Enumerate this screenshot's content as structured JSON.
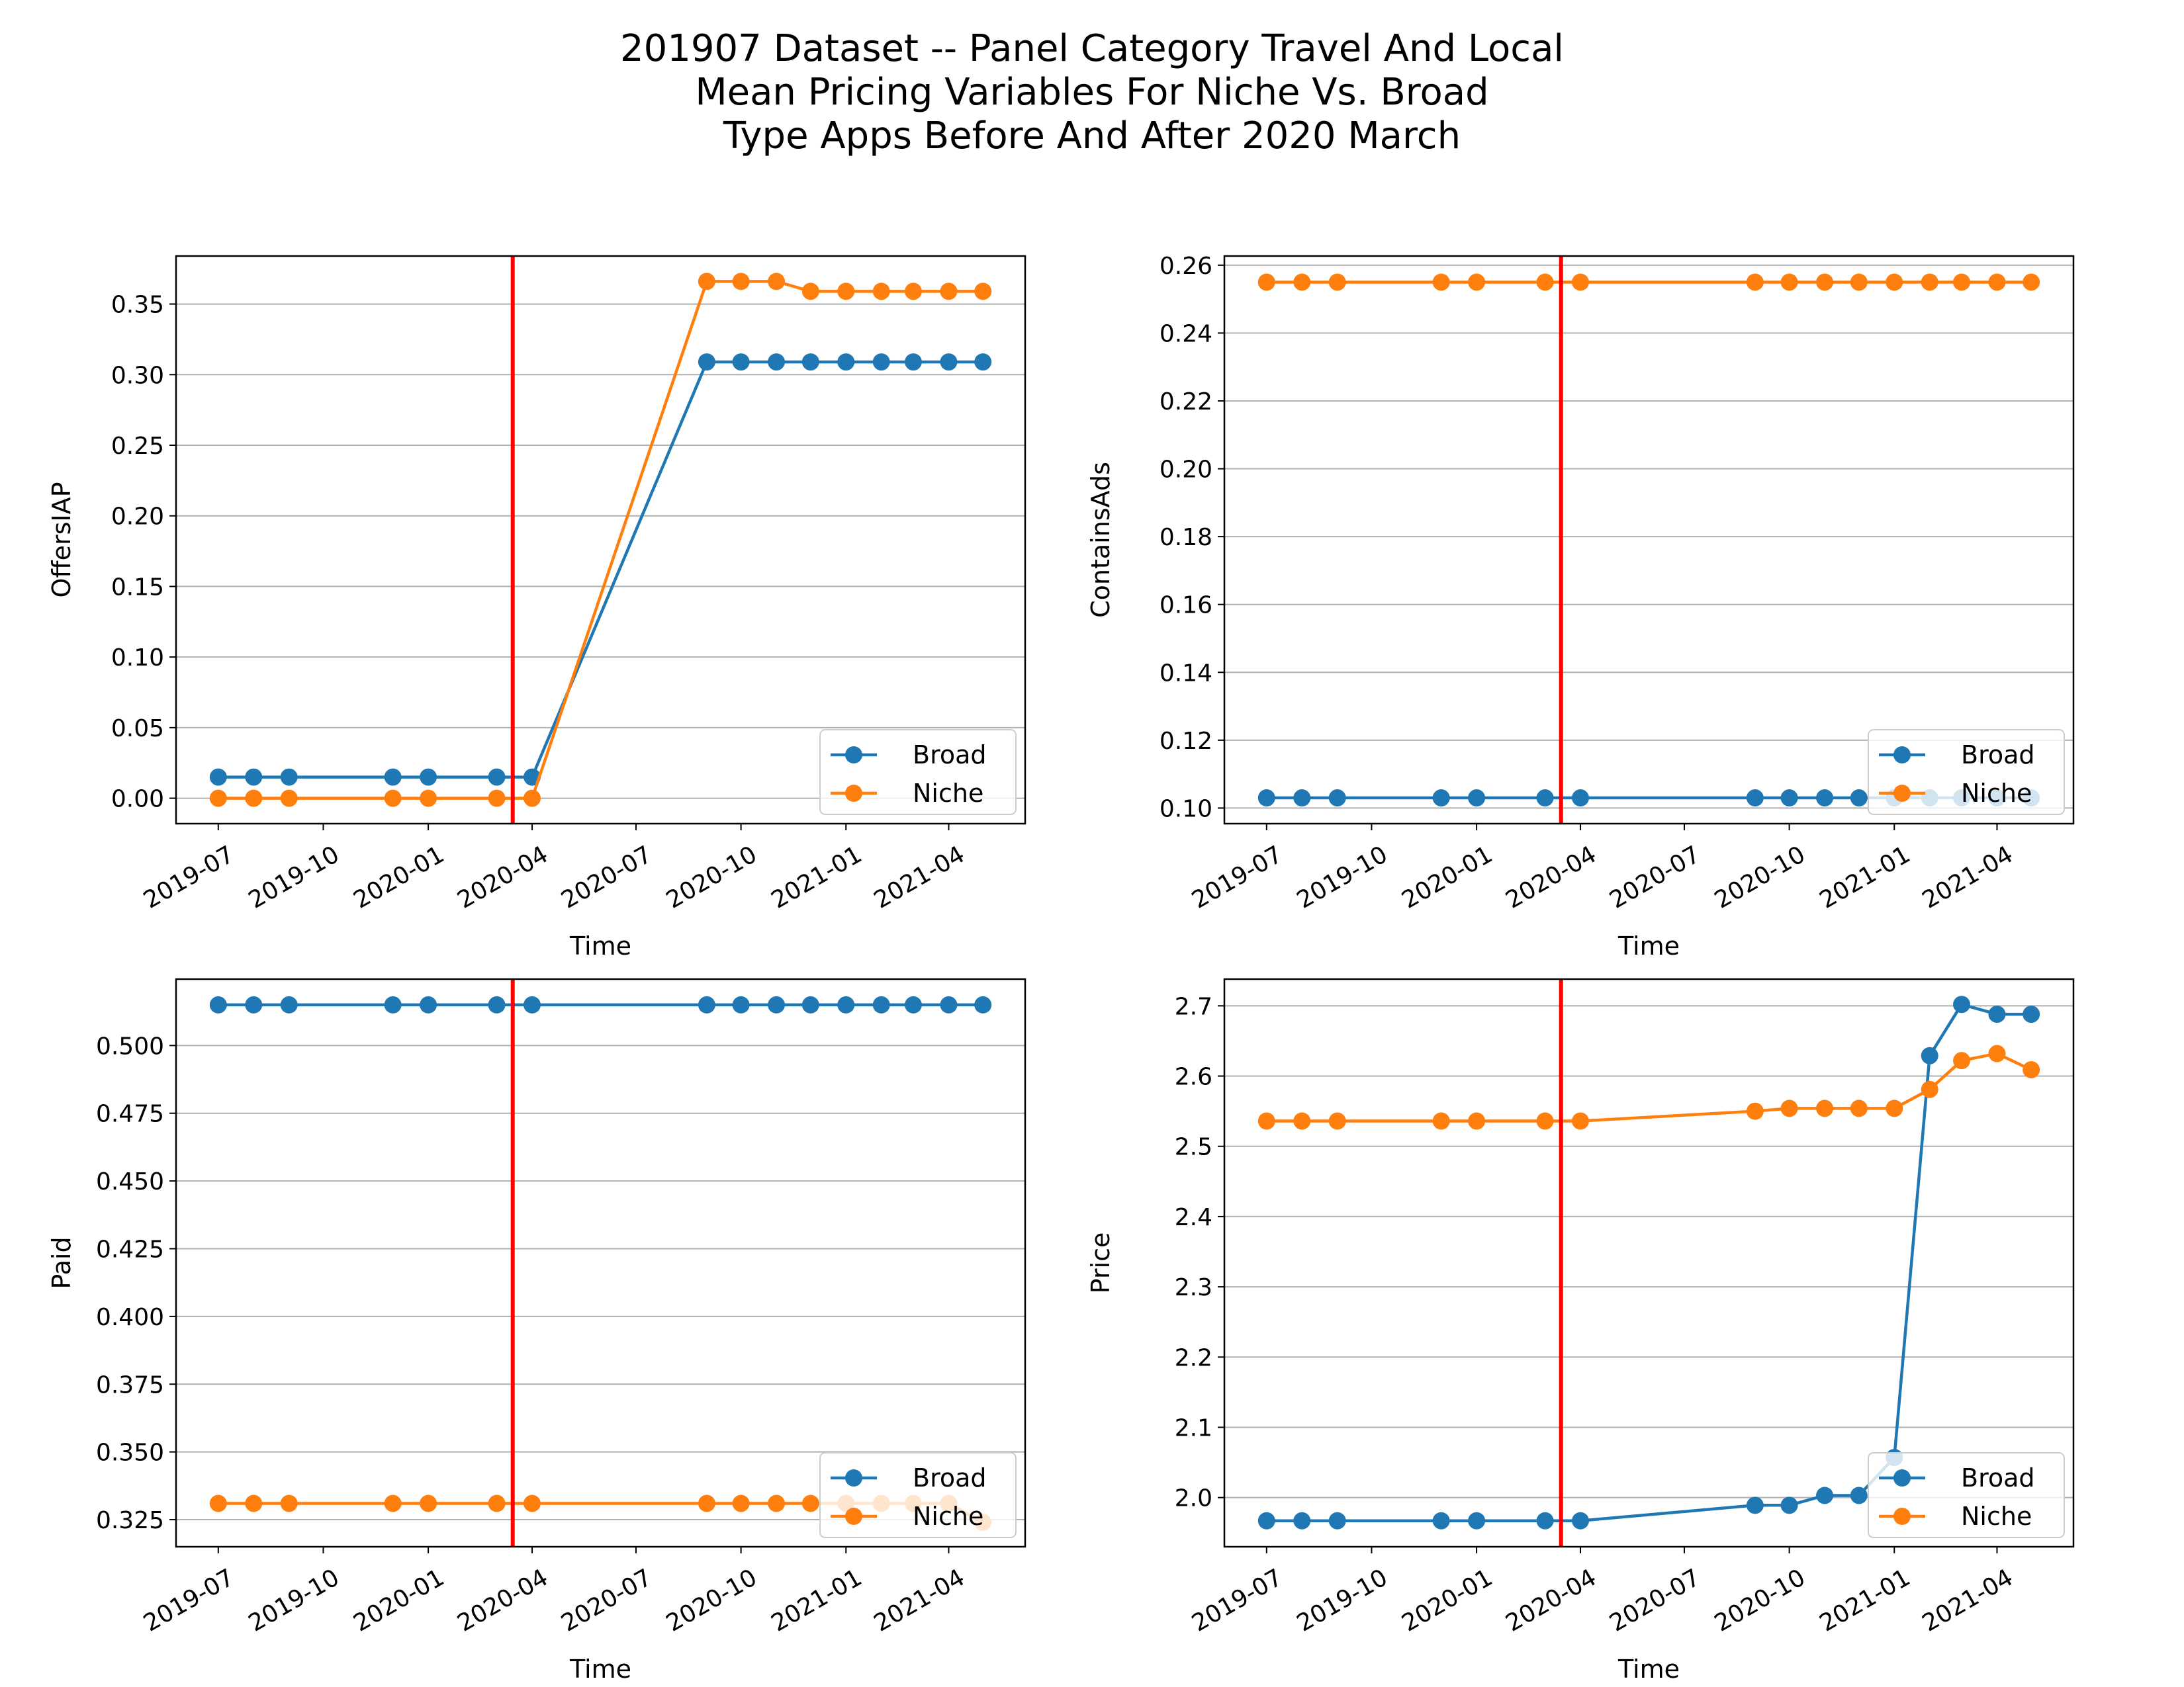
{
  "suptitle": [
    "201907 Dataset -- Panel Category Travel And Local",
    "Mean Pricing Variables For Niche Vs. Broad",
    "Type Apps Before And After 2020 March"
  ],
  "colors": {
    "broad": "#1f77b4",
    "niche": "#ff7f0e",
    "event_line": "#ff0000",
    "grid": "#b0b0b0"
  },
  "chart_data": [
    {
      "type": "line",
      "ylabel": "OffersIAP",
      "xlabel": "Time",
      "event_date": "2020-03-15",
      "x": [
        "2019-07-01",
        "2019-08-01",
        "2019-09-01",
        "2019-12-01",
        "2020-01-01",
        "2020-03-01",
        "2020-04-01",
        "2020-09-01",
        "2020-10-01",
        "2020-11-01",
        "2020-12-01",
        "2021-01-01",
        "2021-02-01",
        "2021-03-01",
        "2021-04-01",
        "2021-05-01"
      ],
      "series": [
        {
          "name": "Broad",
          "values": [
            0.015,
            0.015,
            0.015,
            0.015,
            0.015,
            0.015,
            0.015,
            0.309,
            0.309,
            0.309,
            0.309,
            0.309,
            0.309,
            0.309,
            0.309,
            0.309
          ]
        },
        {
          "name": "Niche",
          "values": [
            0.0,
            0.0,
            0.0,
            0.0,
            0.0,
            0.0,
            0.0,
            0.366,
            0.366,
            0.366,
            0.359,
            0.359,
            0.359,
            0.359,
            0.359,
            0.359
          ]
        }
      ],
      "ylim": [
        -0.018,
        0.384
      ],
      "yticks": [
        0.0,
        0.05,
        0.1,
        0.15,
        0.2,
        0.25,
        0.3,
        0.35
      ],
      "ytick_labels": [
        "0.00",
        "0.05",
        "0.10",
        "0.15",
        "0.20",
        "0.25",
        "0.30",
        "0.35"
      ],
      "xlim": [
        "2019-05-25",
        "2021-06-07"
      ],
      "xticks": [
        "2019-07-01",
        "2019-10-01",
        "2020-01-01",
        "2020-04-01",
        "2020-07-01",
        "2020-10-01",
        "2021-01-01",
        "2021-04-01"
      ],
      "xtick_labels": [
        "2019-07",
        "2019-10",
        "2020-01",
        "2020-04",
        "2020-07",
        "2020-10",
        "2021-01",
        "2021-04"
      ],
      "grid": "y",
      "legend": "lower right"
    },
    {
      "type": "line",
      "ylabel": "ContainsAds",
      "xlabel": "Time",
      "event_date": "2020-03-15",
      "x": [
        "2019-07-01",
        "2019-08-01",
        "2019-09-01",
        "2019-12-01",
        "2020-01-01",
        "2020-03-01",
        "2020-04-01",
        "2020-09-01",
        "2020-10-01",
        "2020-11-01",
        "2020-12-01",
        "2021-01-01",
        "2021-02-01",
        "2021-03-01",
        "2021-04-01",
        "2021-05-01"
      ],
      "series": [
        {
          "name": "Broad",
          "values": [
            0.103,
            0.103,
            0.103,
            0.103,
            0.103,
            0.103,
            0.103,
            0.103,
            0.103,
            0.103,
            0.103,
            0.103,
            0.103,
            0.103,
            0.103,
            0.103
          ]
        },
        {
          "name": "Niche",
          "values": [
            0.255,
            0.255,
            0.255,
            0.255,
            0.255,
            0.255,
            0.255,
            0.255,
            0.255,
            0.255,
            0.255,
            0.255,
            0.255,
            0.255,
            0.255,
            0.255
          ]
        }
      ],
      "ylim": [
        0.0954,
        0.2627
      ],
      "yticks": [
        0.1,
        0.12,
        0.14,
        0.16,
        0.18,
        0.2,
        0.22,
        0.24,
        0.26
      ],
      "ytick_labels": [
        "0.10",
        "0.12",
        "0.14",
        "0.16",
        "0.18",
        "0.20",
        "0.22",
        "0.24",
        "0.26"
      ],
      "xlim": [
        "2019-05-25",
        "2021-06-07"
      ],
      "xticks": [
        "2019-07-01",
        "2019-10-01",
        "2020-01-01",
        "2020-04-01",
        "2020-07-01",
        "2020-10-01",
        "2021-01-01",
        "2021-04-01"
      ],
      "xtick_labels": [
        "2019-07",
        "2019-10",
        "2020-01",
        "2020-04",
        "2020-07",
        "2020-10",
        "2021-01",
        "2021-04"
      ],
      "grid": "y",
      "legend": "lower right"
    },
    {
      "type": "line",
      "ylabel": "Paid",
      "xlabel": "Time",
      "event_date": "2020-03-15",
      "x": [
        "2019-07-01",
        "2019-08-01",
        "2019-09-01",
        "2019-12-01",
        "2020-01-01",
        "2020-03-01",
        "2020-04-01",
        "2020-09-01",
        "2020-10-01",
        "2020-11-01",
        "2020-12-01",
        "2021-01-01",
        "2021-02-01",
        "2021-03-01",
        "2021-04-01",
        "2021-05-01"
      ],
      "series": [
        {
          "name": "Broad",
          "values": [
            0.515,
            0.515,
            0.515,
            0.515,
            0.515,
            0.515,
            0.515,
            0.515,
            0.515,
            0.515,
            0.515,
            0.515,
            0.515,
            0.515,
            0.515,
            0.515
          ]
        },
        {
          "name": "Niche",
          "values": [
            0.331,
            0.331,
            0.331,
            0.331,
            0.331,
            0.331,
            0.331,
            0.331,
            0.331,
            0.331,
            0.331,
            0.331,
            0.331,
            0.331,
            0.331,
            0.324
          ]
        }
      ],
      "ylim": [
        0.315,
        0.5245
      ],
      "yticks": [
        0.325,
        0.35,
        0.375,
        0.4,
        0.425,
        0.45,
        0.475,
        0.5
      ],
      "ytick_labels": [
        "0.325",
        "0.350",
        "0.375",
        "0.400",
        "0.425",
        "0.450",
        "0.475",
        "0.500"
      ],
      "xlim": [
        "2019-05-25",
        "2021-06-07"
      ],
      "xticks": [
        "2019-07-01",
        "2019-10-01",
        "2020-01-01",
        "2020-04-01",
        "2020-07-01",
        "2020-10-01",
        "2021-01-01",
        "2021-04-01"
      ],
      "xtick_labels": [
        "2019-07",
        "2019-10",
        "2020-01",
        "2020-04",
        "2020-07",
        "2020-10",
        "2021-01",
        "2021-04"
      ],
      "grid": "y",
      "legend": "lower right"
    },
    {
      "type": "line",
      "ylabel": "Price",
      "xlabel": "Time",
      "event_date": "2020-03-15",
      "x": [
        "2019-07-01",
        "2019-08-01",
        "2019-09-01",
        "2019-12-01",
        "2020-01-01",
        "2020-03-01",
        "2020-04-01",
        "2020-09-01",
        "2020-10-01",
        "2020-11-01",
        "2020-12-01",
        "2021-01-01",
        "2021-02-01",
        "2021-03-01",
        "2021-04-01",
        "2021-05-01"
      ],
      "series": [
        {
          "name": "Broad",
          "values": [
            1.967,
            1.967,
            1.967,
            1.967,
            1.967,
            1.967,
            1.967,
            1.989,
            1.989,
            2.003,
            2.003,
            2.057,
            2.629,
            2.702,
            2.688,
            2.688
          ]
        },
        {
          "name": "Niche",
          "values": [
            2.536,
            2.536,
            2.536,
            2.536,
            2.536,
            2.536,
            2.536,
            2.55,
            2.554,
            2.554,
            2.554,
            2.554,
            2.581,
            2.622,
            2.632,
            2.609
          ]
        }
      ],
      "ylim": [
        1.93,
        2.738
      ],
      "yticks": [
        2.0,
        2.1,
        2.2,
        2.3,
        2.4,
        2.5,
        2.6,
        2.7
      ],
      "ytick_labels": [
        "2.0",
        "2.1",
        "2.2",
        "2.3",
        "2.4",
        "2.5",
        "2.6",
        "2.7"
      ],
      "xlim": [
        "2019-05-25",
        "2021-06-07"
      ],
      "xticks": [
        "2019-07-01",
        "2019-10-01",
        "2020-01-01",
        "2020-04-01",
        "2020-07-01",
        "2020-10-01",
        "2021-01-01",
        "2021-04-01"
      ],
      "xtick_labels": [
        "2019-07",
        "2019-10",
        "2020-01",
        "2020-04",
        "2020-07",
        "2020-10",
        "2021-01",
        "2021-04"
      ],
      "grid": "y",
      "legend": "lower right"
    }
  ]
}
